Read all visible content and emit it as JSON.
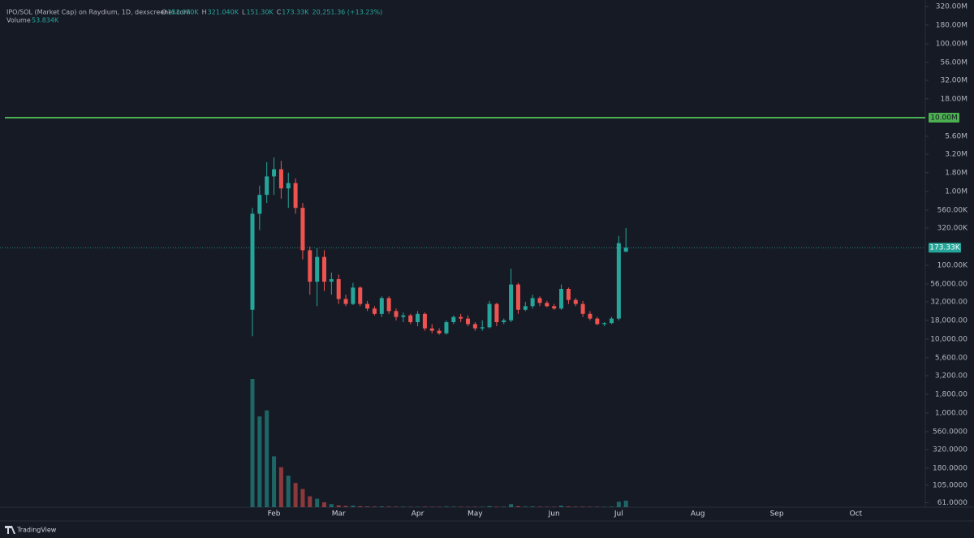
{
  "chart_data": {
    "type": "candlestick",
    "title": "IPO/SOL (Market Cap) on Raydium, 1D, dexscreener.com",
    "legend": {
      "o_label": "O",
      "o": "153.070K",
      "h_label": "H",
      "h": "321.040K",
      "l_label": "L",
      "l": "151.30K",
      "c_label": "C",
      "c": "173.33K",
      "change": "20,251.36 (+13.23%)",
      "volume_label": "Volume",
      "volume": "53.834K"
    },
    "branding": "TradingView",
    "up_color": "#26a69a",
    "down_color": "#ef5350",
    "log_y": true,
    "ylim": [
      53.1,
      392000000
    ],
    "yticks": [
      {
        "value": 320000000,
        "label": "320.00M"
      },
      {
        "value": 180000000,
        "label": "180.00M"
      },
      {
        "value": 100000000,
        "label": "100.00M"
      },
      {
        "value": 56000000,
        "label": "56.00M"
      },
      {
        "value": 32000000,
        "label": "32.00M"
      },
      {
        "value": 18000000,
        "label": "18.00M"
      },
      {
        "value": 5600000,
        "label": "5.60M"
      },
      {
        "value": 3200000,
        "label": "3.20M"
      },
      {
        "value": 1800000,
        "label": "1.80M"
      },
      {
        "value": 1000000,
        "label": "1.00M"
      },
      {
        "value": 560000,
        "label": "560.00K"
      },
      {
        "value": 320000,
        "label": "320.00K"
      },
      {
        "value": 100000,
        "label": "100.00K"
      },
      {
        "value": 56000,
        "label": "56,000.00"
      },
      {
        "value": 32000,
        "label": "32,000.00"
      },
      {
        "value": 18000,
        "label": "18,000.00"
      },
      {
        "value": 10000,
        "label": "10,000.00"
      },
      {
        "value": 5600,
        "label": "5,600.00"
      },
      {
        "value": 3200,
        "label": "3,200.00"
      },
      {
        "value": 1800,
        "label": "1,800.00"
      },
      {
        "value": 1000,
        "label": "1,000.00"
      },
      {
        "value": 560,
        "label": "560.0000"
      },
      {
        "value": 320,
        "label": "320.0000"
      },
      {
        "value": 180,
        "label": "180.0000"
      },
      {
        "value": 105,
        "label": "105.0000"
      },
      {
        "value": 61,
        "label": "61.0000"
      }
    ],
    "level": {
      "value": 10000000,
      "label": "10.00M",
      "color": "#4caf50"
    },
    "last_price": {
      "value": 173330,
      "label": "173.33K"
    },
    "categories": [
      null,
      null,
      null,
      "Feb",
      null,
      null,
      null,
      null,
      null,
      null,
      null,
      null,
      "Mar",
      null,
      null,
      null,
      null,
      null,
      null,
      null,
      null,
      null,
      null,
      "Apr",
      null,
      null,
      null,
      null,
      null,
      null,
      null,
      "May",
      null,
      null,
      null,
      null,
      null,
      null,
      null,
      null,
      null,
      null,
      "Jun",
      null,
      null,
      null,
      null,
      null,
      null,
      null,
      null,
      "Jul",
      null,
      null,
      null,
      null,
      null,
      null,
      null,
      null,
      null,
      null,
      "Aug",
      null,
      null,
      null,
      null,
      null,
      null,
      null,
      null,
      null,
      null,
      "Sep",
      null,
      null,
      null,
      null,
      null,
      null,
      null,
      null,
      null,
      null,
      "Oct"
    ],
    "open": [
      25000,
      500000,
      900000,
      1600000,
      2000000,
      1100000,
      1300000,
      600000,
      160000,
      60000,
      130000,
      60000,
      65000,
      35000,
      30000,
      50000,
      30000,
      26000,
      22000,
      36000,
      24000,
      20000,
      21000,
      17000,
      22000,
      14000,
      13000,
      12000,
      17000,
      20000,
      19000,
      16000,
      14000,
      14500,
      30000,
      17000,
      18000,
      55000,
      25000,
      28000,
      36000,
      31000,
      28000,
      26000,
      48000,
      34000,
      30000,
      22000,
      19000,
      16000,
      16500,
      19000,
      153070,
      null,
      null,
      null,
      null,
      null,
      null,
      null,
      null,
      null,
      null,
      null,
      null,
      null,
      null,
      null,
      null,
      null,
      null,
      null,
      null,
      null,
      null,
      null,
      null,
      null,
      null,
      null,
      null,
      null,
      null,
      null,
      null
    ],
    "high": [
      600000,
      1200000,
      2500000,
      2900000,
      2600000,
      1800000,
      1500000,
      700000,
      180000,
      170000,
      160000,
      80000,
      75000,
      40000,
      58000,
      52000,
      33000,
      28000,
      38000,
      38000,
      26000,
      23000,
      22000,
      24000,
      23000,
      16000,
      14000,
      18000,
      21000,
      22000,
      21000,
      17000,
      18000,
      33000,
      31000,
      19000,
      90000,
      58000,
      32000,
      40000,
      38000,
      33000,
      30000,
      55000,
      50000,
      36000,
      33000,
      24000,
      20000,
      17000,
      20000,
      250000,
      321040,
      null,
      null,
      null,
      null,
      null,
      null,
      null,
      null,
      null,
      null,
      null,
      null,
      null,
      null,
      null,
      null,
      null,
      null,
      null,
      null,
      null,
      null,
      null,
      null,
      null,
      null,
      null,
      null,
      null,
      null,
      null,
      null
    ],
    "low": [
      11000,
      300000,
      700000,
      900000,
      800000,
      600000,
      500000,
      120000,
      40000,
      28000,
      45000,
      40000,
      30000,
      28000,
      29000,
      28000,
      24000,
      21000,
      20000,
      22000,
      18000,
      17000,
      16000,
      15000,
      13000,
      12000,
      11500,
      11500,
      16000,
      17000,
      15000,
      13000,
      13000,
      14000,
      15000,
      16000,
      17000,
      22000,
      24000,
      26000,
      28000,
      27000,
      25000,
      25000,
      30000,
      28000,
      20000,
      18000,
      15500,
      15000,
      16000,
      18000,
      151300,
      null,
      null,
      null,
      null,
      null,
      null,
      null,
      null,
      null,
      null,
      null,
      null,
      null,
      null,
      null,
      null,
      null,
      null,
      null,
      null,
      null,
      null,
      null,
      null,
      null,
      null,
      null,
      null,
      null,
      null,
      null,
      null
    ],
    "close": [
      500000,
      900000,
      1600000,
      2000000,
      1100000,
      1300000,
      600000,
      160000,
      60000,
      130000,
      60000,
      65000,
      35000,
      30000,
      50000,
      30000,
      26000,
      22000,
      36000,
      24000,
      20000,
      21000,
      17000,
      22000,
      14000,
      13000,
      12000,
      17000,
      20000,
      19000,
      16000,
      14000,
      14500,
      30000,
      17000,
      18000,
      55000,
      25000,
      28000,
      36000,
      31000,
      28000,
      26000,
      48000,
      34000,
      30000,
      22000,
      19000,
      16000,
      16500,
      19000,
      200000,
      173330,
      null,
      null,
      null,
      null,
      null,
      null,
      null,
      null,
      null,
      null,
      null,
      null,
      null,
      null,
      null,
      null,
      null,
      null,
      null,
      null,
      null,
      null,
      null,
      null,
      null,
      null,
      null,
      null,
      null,
      null,
      null,
      null
    ],
    "volume": [
      1060000,
      750000,
      800000,
      420000,
      330000,
      260000,
      200000,
      150000,
      90000,
      70000,
      40000,
      25000,
      15000,
      10000,
      12000,
      8000,
      6000,
      5000,
      6000,
      5000,
      4000,
      4000,
      3000,
      3000,
      4000,
      3000,
      3000,
      5000,
      4000,
      3000,
      3000,
      3000,
      3000,
      8000,
      4000,
      4000,
      25000,
      8000,
      5000,
      6000,
      4000,
      3000,
      3000,
      12000,
      6000,
      4000,
      4000,
      3000,
      3000,
      3000,
      4000,
      45000,
      53834,
      null,
      null,
      null,
      null,
      null,
      null,
      null,
      null,
      null,
      null,
      null,
      null,
      null,
      null,
      null,
      null,
      null,
      null,
      null,
      null,
      null,
      null,
      null,
      null,
      null,
      null,
      null,
      null,
      null,
      null,
      null,
      null
    ]
  }
}
